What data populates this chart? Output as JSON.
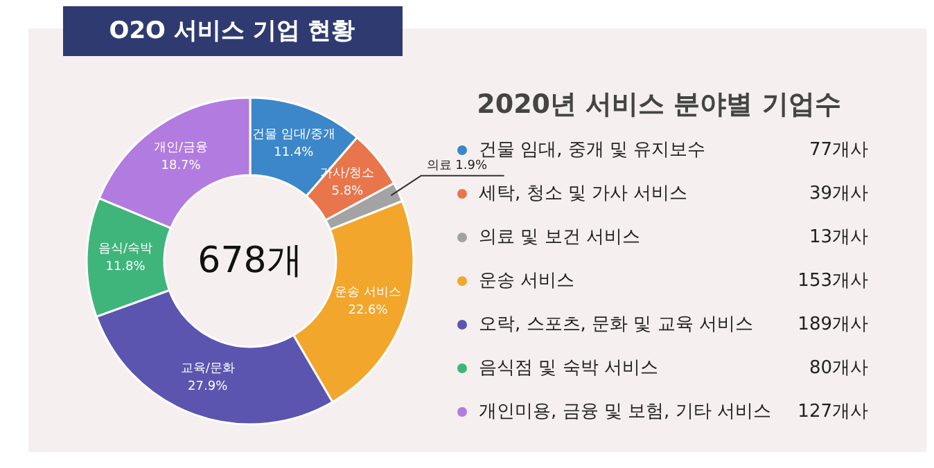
{
  "chart_data": {
    "type": "donut",
    "title": "O2O 서비스 기업 현황",
    "subtitle": "2020년 서비스 분야별 기업수",
    "categories": [
      "건물 임대, 중개 및 유지보수",
      "세탁, 청소 및 가사 서비스",
      "의료 및 보건 서비스",
      "운송 서비스",
      "오락, 스포츠, 문화 및 교육 서비스",
      "음식점 및 숙박 서비스",
      "개인미용, 금융 및 보험, 기타 서비스"
    ],
    "values": [
      77,
      39,
      13,
      153,
      189,
      80,
      127
    ],
    "value_labels": [
      "77개사",
      "39개사",
      "13개사",
      "153개사",
      "189개사",
      "80개사",
      "127개사"
    ],
    "colors": [
      "#3b87c9",
      "#e8754b",
      "#a3a3a3",
      "#f2a62b",
      "#5b55b0",
      "#3fb57c",
      "#b27be0"
    ],
    "annotations": [
      "건물 임대/중개\n11.4%",
      "가사/청소\n5.8%",
      "의료 1.9%",
      "운송 서비스\n22.6%",
      "교육/문화\n27.9%",
      "음식/숙박\n11.8%",
      "개인/금융\n18.7%",
      "678개"
    ],
    "legend": "right"
  }
}
